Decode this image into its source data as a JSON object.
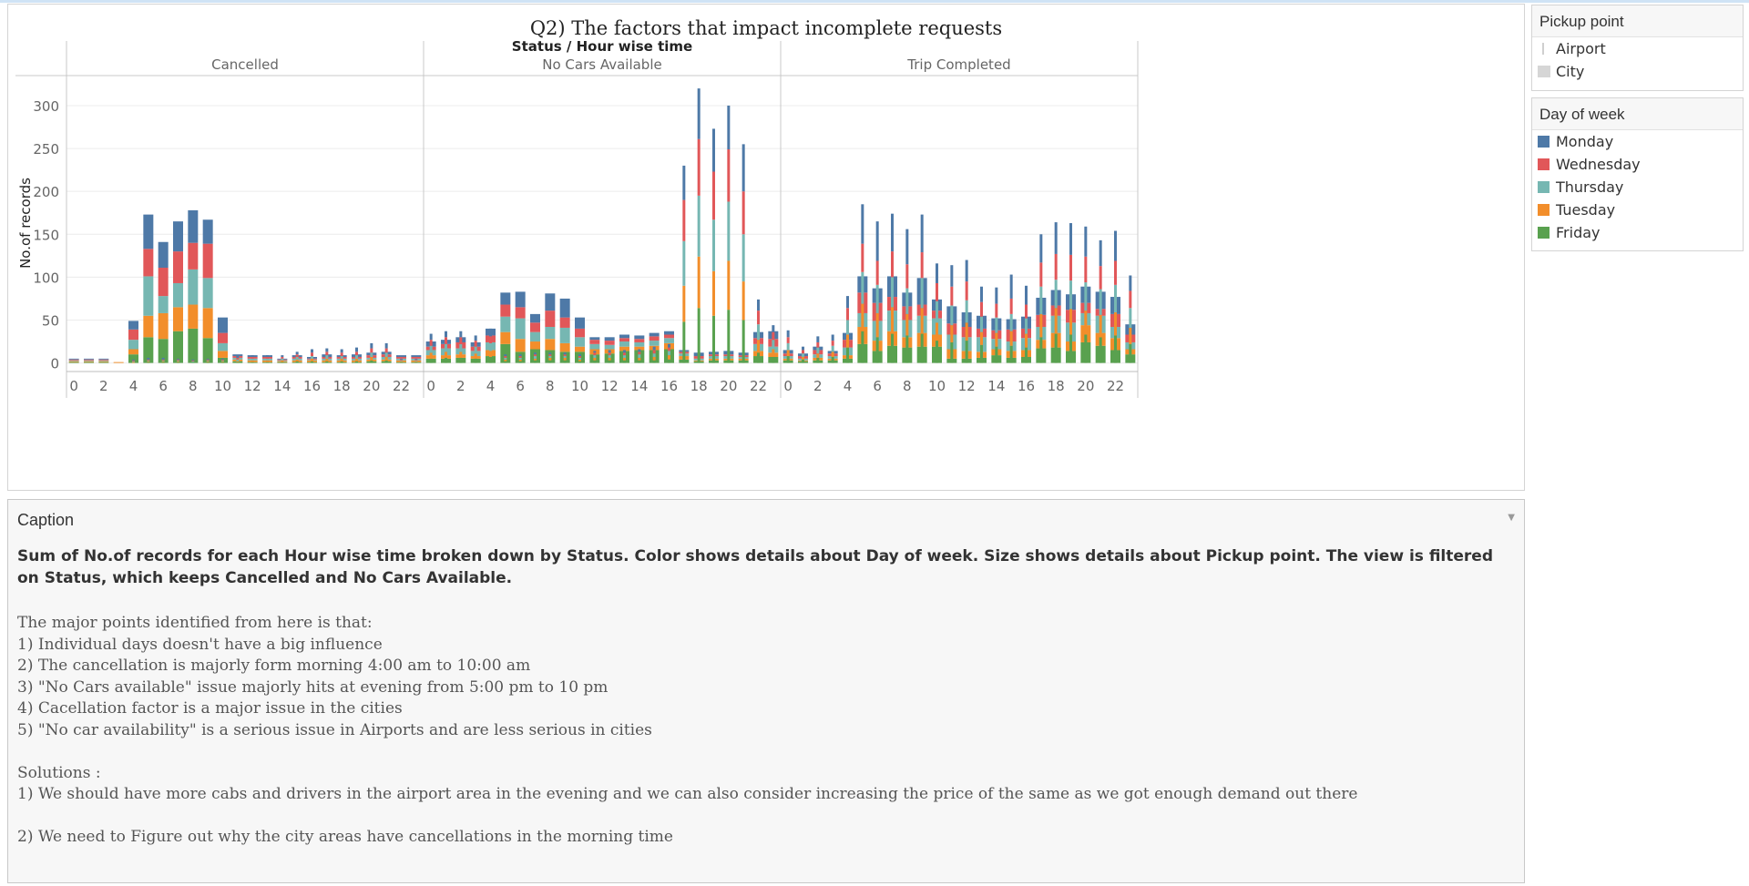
{
  "page": {
    "chart_title": "Q2) The factors that impact incomplete requests"
  },
  "legends": {
    "pickup": {
      "title": "Pickup point",
      "items": [
        "Airport",
        "City"
      ]
    },
    "day": {
      "title": "Day of week",
      "items": [
        {
          "label": "Monday",
          "color": "#4e79a7"
        },
        {
          "label": "Wednesday",
          "color": "#e15759"
        },
        {
          "label": "Thursday",
          "color": "#76b7b2"
        },
        {
          "label": "Tuesday",
          "color": "#f28e2b"
        },
        {
          "label": "Friday",
          "color": "#59a14f"
        }
      ]
    }
  },
  "caption": {
    "header": "Caption",
    "summary": "Sum of No.of records for each Hour wise time broken down by Status.  Color shows details about Day of week.  Size shows details about Pickup point. The view is filtered on Status, which keeps Cancelled and No Cars Available.",
    "lines": [
      "The major points identified from here is that:",
      "1) Individual days doesn't have a big influence",
      "2) The cancellation is majorly form morning 4:00 am to 10:00 am",
      "3) \"No Cars available\" issue majorly hits at evening from 5:00 pm to 10 pm",
      "4) Cacellation factor is a major issue in the cities",
      "5) \"No car availability\" is a serious issue in Airports and are less serious in cities",
      "",
      "Solutions :",
      "1) We should have more cabs and drivers in the airport area in the evening and we can also consider increasing the price of the same as we got enough demand out there",
      "",
      "2) We need to Figure out why the city areas have cancellations in the morning time"
    ]
  },
  "chart_data": {
    "type": "bar",
    "stacked": true,
    "column_header": "Status  /  Hour wise time",
    "ylabel": "No.of records",
    "ylim": [
      -10,
      335
    ],
    "y_ticks": [
      0,
      50,
      100,
      150,
      200,
      250,
      300
    ],
    "x_tick_labels": [
      "0",
      "2",
      "4",
      "6",
      "8",
      "10",
      "12",
      "14",
      "16",
      "18",
      "20",
      "22"
    ],
    "x_tick_hours": [
      0,
      2,
      4,
      6,
      8,
      10,
      12,
      14,
      16,
      18,
      20,
      22
    ],
    "hours": [
      0,
      1,
      2,
      3,
      4,
      5,
      6,
      7,
      8,
      9,
      10,
      11,
      12,
      13,
      14,
      15,
      16,
      17,
      18,
      19,
      20,
      21,
      22,
      23
    ],
    "series_order": [
      "Friday",
      "Tuesday",
      "Thursday",
      "Wednesday",
      "Monday"
    ],
    "panels": [
      {
        "status": "Cancelled",
        "City": {
          "Friday": [
            1,
            1,
            1,
            0,
            10,
            30,
            28,
            37,
            40,
            29,
            6,
            2,
            1,
            1,
            1,
            1,
            1,
            1,
            1,
            1,
            2,
            2,
            1,
            1
          ],
          "Tuesday": [
            1,
            1,
            1,
            1,
            6,
            25,
            30,
            28,
            28,
            35,
            8,
            2,
            2,
            2,
            1,
            2,
            2,
            2,
            2,
            2,
            2,
            2,
            2,
            2
          ],
          "Thursday": [
            1,
            1,
            1,
            0,
            11,
            46,
            20,
            28,
            41,
            35,
            9,
            2,
            2,
            2,
            1,
            2,
            1,
            2,
            2,
            2,
            2,
            3,
            2,
            2
          ],
          "Wednesday": [
            1,
            1,
            1,
            0,
            12,
            32,
            33,
            37,
            31,
            40,
            12,
            2,
            2,
            2,
            1,
            2,
            1,
            2,
            2,
            2,
            3,
            3,
            2,
            2
          ],
          "Monday": [
            1,
            1,
            1,
            0,
            10,
            40,
            30,
            35,
            38,
            28,
            18,
            2,
            2,
            2,
            1,
            2,
            2,
            3,
            2,
            3,
            3,
            3,
            2,
            2
          ]
        },
        "Airport": {
          "Friday": [
            0,
            0,
            0,
            0,
            0,
            1,
            1,
            1,
            1,
            1,
            1,
            1,
            1,
            1,
            1,
            2,
            2,
            2,
            2,
            2,
            3,
            3,
            1,
            1
          ],
          "Tuesday": [
            0,
            0,
            0,
            0,
            1,
            1,
            1,
            1,
            0,
            1,
            1,
            1,
            2,
            2,
            2,
            2,
            3,
            3,
            3,
            3,
            4,
            4,
            1,
            1
          ],
          "Thursday": [
            0,
            0,
            0,
            0,
            1,
            1,
            1,
            1,
            1,
            1,
            1,
            2,
            2,
            2,
            2,
            3,
            3,
            4,
            3,
            4,
            5,
            5,
            1,
            1
          ],
          "Wednesday": [
            0,
            0,
            0,
            0,
            1,
            1,
            1,
            1,
            1,
            1,
            1,
            2,
            2,
            2,
            2,
            3,
            4,
            4,
            4,
            4,
            5,
            5,
            1,
            1
          ],
          "Monday": [
            0,
            0,
            0,
            0,
            1,
            2,
            2,
            1,
            1,
            1,
            1,
            2,
            2,
            2,
            2,
            3,
            4,
            4,
            4,
            5,
            6,
            6,
            1,
            1
          ]
        }
      },
      {
        "status": "No Cars Available",
        "City": {
          "Friday": [
            5,
            5,
            6,
            5,
            8,
            22,
            13,
            16,
            15,
            13,
            13,
            10,
            11,
            14,
            15,
            15,
            16,
            4,
            2,
            3,
            3,
            3,
            8,
            7
          ],
          "Tuesday": [
            4,
            4,
            4,
            3,
            7,
            14,
            15,
            9,
            13,
            10,
            6,
            6,
            5,
            5,
            4,
            5,
            7,
            4,
            1,
            2,
            2,
            2,
            6,
            5
          ],
          "Thursday": [
            6,
            8,
            7,
            6,
            9,
            18,
            24,
            11,
            14,
            18,
            11,
            6,
            5,
            6,
            5,
            6,
            6,
            3,
            2,
            3,
            3,
            2,
            8,
            7
          ],
          "Wednesday": [
            4,
            5,
            7,
            5,
            8,
            14,
            13,
            11,
            19,
            12,
            10,
            5,
            5,
            4,
            4,
            5,
            4,
            2,
            3,
            2,
            2,
            2,
            7,
            9
          ],
          "Monday": [
            6,
            5,
            6,
            5,
            8,
            14,
            18,
            10,
            20,
            22,
            13,
            3,
            4,
            4,
            4,
            4,
            4,
            2,
            4,
            3,
            4,
            3,
            7,
            9
          ]
        },
        "Airport": {
          "Friday": [
            5,
            6,
            6,
            5,
            7,
            2,
            2,
            3,
            3,
            3,
            2,
            3,
            3,
            3,
            3,
            3,
            4,
            48,
            64,
            55,
            62,
            50,
            12,
            7
          ],
          "Tuesday": [
            7,
            7,
            7,
            6,
            7,
            2,
            2,
            2,
            3,
            3,
            2,
            3,
            3,
            3,
            3,
            4,
            5,
            42,
            60,
            52,
            57,
            45,
            15,
            9
          ],
          "Thursday": [
            8,
            9,
            9,
            8,
            9,
            2,
            2,
            3,
            2,
            2,
            2,
            3,
            3,
            3,
            4,
            4,
            5,
            52,
            71,
            60,
            69,
            55,
            18,
            11
          ],
          "Wednesday": [
            7,
            8,
            8,
            7,
            8,
            2,
            2,
            2,
            2,
            2,
            2,
            3,
            3,
            3,
            3,
            4,
            4,
            48,
            66,
            56,
            61,
            50,
            16,
            9
          ],
          "Monday": [
            7,
            7,
            7,
            6,
            9,
            2,
            2,
            2,
            2,
            2,
            2,
            2,
            3,
            3,
            3,
            4,
            4,
            40,
            59,
            50,
            51,
            55,
            13,
            8
          ]
        }
      },
      {
        "status": "Trip Completed",
        "City": {
          "Friday": [
            3,
            2,
            3,
            3,
            5,
            22,
            14,
            20,
            18,
            19,
            19,
            5,
            5,
            6,
            9,
            6,
            7,
            17,
            18,
            14,
            24,
            20,
            15,
            10
          ],
          "Tuesday": [
            2,
            1,
            3,
            2,
            4,
            20,
            12,
            17,
            12,
            16,
            14,
            11,
            9,
            7,
            7,
            8,
            8,
            10,
            17,
            11,
            20,
            15,
            14,
            6
          ],
          "Thursday": [
            3,
            2,
            4,
            3,
            9,
            16,
            23,
            24,
            20,
            20,
            19,
            17,
            16,
            17,
            12,
            11,
            14,
            15,
            20,
            22,
            14,
            20,
            13,
            8
          ],
          "Wednesday": [
            3,
            3,
            5,
            3,
            9,
            24,
            21,
            16,
            16,
            13,
            9,
            13,
            12,
            10,
            10,
            14,
            11,
            14,
            12,
            15,
            12,
            8,
            15,
            9
          ],
          "Monday": [
            4,
            3,
            4,
            3,
            8,
            19,
            17,
            24,
            16,
            31,
            13,
            20,
            17,
            15,
            14,
            12,
            14,
            20,
            18,
            18,
            19,
            20,
            20,
            12
          ]
        },
        "Airport": {
          "Friday": [
            8,
            4,
            6,
            7,
            18,
            37,
            30,
            34,
            32,
            34,
            26,
            24,
            26,
            21,
            19,
            20,
            18,
            30,
            34,
            33,
            33,
            30,
            32,
            22
          ],
          "Tuesday": [
            7,
            3,
            5,
            6,
            15,
            32,
            28,
            31,
            25,
            30,
            21,
            20,
            21,
            15,
            16,
            17,
            16,
            27,
            30,
            30,
            28,
            26,
            27,
            19
          ],
          "Thursday": [
            8,
            4,
            7,
            7,
            17,
            37,
            33,
            35,
            30,
            35,
            25,
            23,
            26,
            18,
            18,
            20,
            18,
            32,
            33,
            33,
            33,
            30,
            32,
            23
          ],
          "Wednesday": [
            7,
            4,
            6,
            6,
            14,
            33,
            28,
            30,
            28,
            30,
            21,
            22,
            22,
            17,
            16,
            18,
            16,
            28,
            30,
            30,
            30,
            27,
            28,
            20
          ],
          "Monday": [
            8,
            4,
            7,
            7,
            14,
            46,
            46,
            44,
            41,
            44,
            23,
            25,
            25,
            18,
            19,
            28,
            22,
            33,
            37,
            37,
            35,
            30,
            35,
            18
          ]
        }
      }
    ]
  }
}
